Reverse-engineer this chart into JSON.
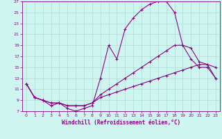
{
  "xlabel": "Windchill (Refroidissement éolien,°C)",
  "background_color": "#cef5ef",
  "grid_color": "#b0ddd8",
  "line_color": "#8b008b",
  "xlim": [
    -0.5,
    23.5
  ],
  "ylim": [
    7,
    27
  ],
  "xticks": [
    0,
    1,
    2,
    3,
    4,
    5,
    6,
    7,
    8,
    9,
    10,
    11,
    12,
    13,
    14,
    15,
    16,
    17,
    18,
    19,
    20,
    21,
    22,
    23
  ],
  "yticks": [
    7,
    9,
    11,
    13,
    15,
    17,
    19,
    21,
    23,
    25,
    27
  ],
  "line1_x": [
    0,
    1,
    2,
    3,
    4,
    5,
    6,
    7,
    8,
    9,
    10,
    11,
    12,
    13,
    14,
    15,
    16,
    17,
    18,
    19,
    20,
    21,
    22,
    23
  ],
  "line1_y": [
    12,
    9.5,
    9,
    8,
    8.5,
    7.5,
    7,
    7.5,
    8,
    13,
    19,
    16.5,
    22,
    24,
    25.5,
    26.5,
    27,
    27,
    25,
    19,
    16.5,
    15,
    15,
    13
  ],
  "line2_x": [
    0,
    1,
    2,
    3,
    4,
    5,
    6,
    7,
    8,
    9,
    10,
    11,
    12,
    13,
    14,
    15,
    16,
    17,
    18,
    19,
    20,
    21,
    22,
    23
  ],
  "line2_y": [
    12,
    9.5,
    9,
    8.5,
    8.5,
    8,
    8,
    8,
    8.5,
    10,
    11,
    12,
    13,
    14,
    15,
    16,
    17,
    18,
    19,
    19,
    18.5,
    16,
    15.5,
    15
  ],
  "line3_x": [
    0,
    1,
    2,
    3,
    4,
    5,
    6,
    7,
    8,
    9,
    10,
    11,
    12,
    13,
    14,
    15,
    16,
    17,
    18,
    19,
    20,
    21,
    22,
    23
  ],
  "line3_y": [
    12,
    9.5,
    9,
    8.5,
    8.5,
    8,
    8,
    8,
    8.5,
    9.5,
    10,
    10.5,
    11,
    11.5,
    12,
    12.5,
    13,
    13.5,
    14,
    14.5,
    15,
    15.5,
    15.5,
    13
  ]
}
